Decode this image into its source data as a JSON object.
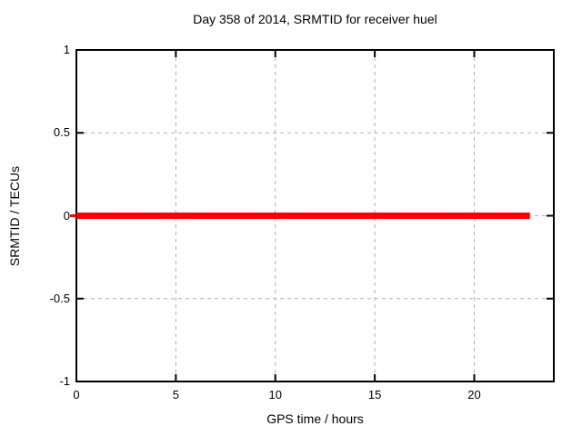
{
  "chart_data": {
    "type": "line",
    "title": "Day 358 of 2014, SRMTID for receiver huel",
    "xlabel": "GPS time / hours",
    "ylabel": "SRMTID / TECUs",
    "xlim": [
      0,
      24
    ],
    "ylim": [
      -1,
      1
    ],
    "x_ticks": {
      "values": [
        0,
        5,
        10,
        15,
        20
      ],
      "labels": [
        "0",
        "5",
        "10",
        "15",
        "20"
      ]
    },
    "y_ticks": {
      "values": [
        1,
        0.5,
        0,
        -0.5,
        -1
      ],
      "labels": [
        "1",
        "0.5",
        "0",
        "-0.5",
        "-1"
      ]
    },
    "grid": "dashed",
    "legend": "none",
    "series": [
      {
        "name": "SRMTID",
        "color": "#ff0000",
        "line_width": 7,
        "points": [
          [
            0,
            0
          ],
          [
            22.8,
            0
          ]
        ]
      }
    ],
    "artifacts": [
      {
        "name": "red-start-dash-outside-left-axis",
        "y": 0
      }
    ]
  },
  "colors": {
    "background": "#ffffff",
    "border": "#000000",
    "grid": "#b0b0b0",
    "text": "#000000",
    "series_red": "#ff0000"
  }
}
